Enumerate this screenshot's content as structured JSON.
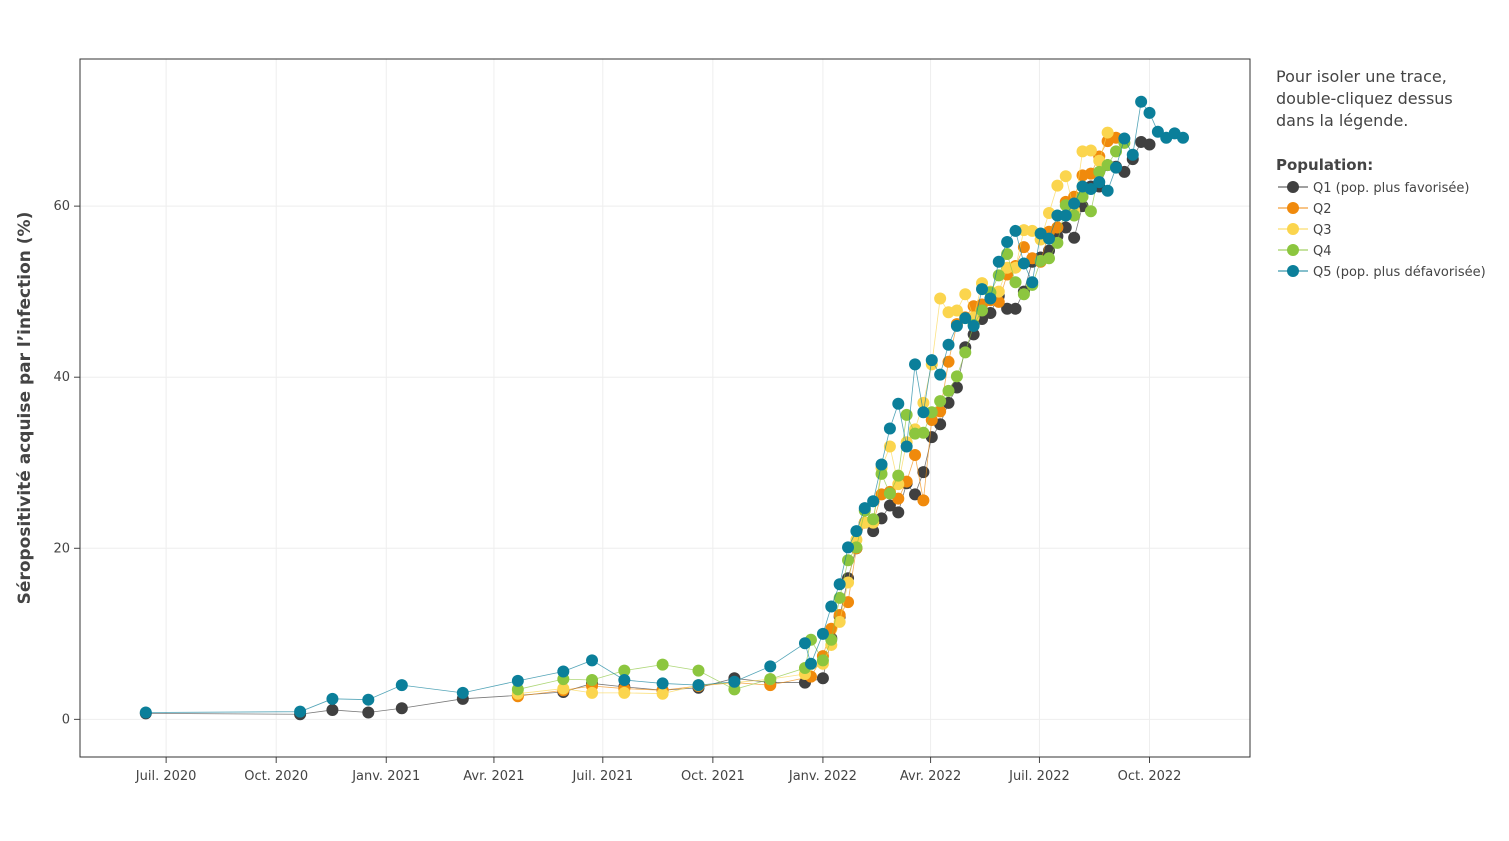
{
  "chart_data": {
    "type": "line",
    "ylabel": "Séropositivité acquise par l’infection (%)",
    "note": [
      "Pour isoler une trace,",
      "double-cliquez dessus",
      "dans la légende."
    ],
    "legend_title": "Population:",
    "legend": "right",
    "grid": true,
    "xlim": [
      "2020-04-20",
      "2022-12-24"
    ],
    "ylim": [
      -4.4,
      77.2
    ],
    "yticks": [
      0,
      20,
      40,
      60
    ],
    "xticks": [
      {
        "value": "2020-07-01",
        "label": "Juil. 2020"
      },
      {
        "value": "2020-10-01",
        "label": "Oct. 2020"
      },
      {
        "value": "2021-01-01",
        "label": "Janv. 2021"
      },
      {
        "value": "2021-04-01",
        "label": "Avr. 2021"
      },
      {
        "value": "2021-07-01",
        "label": "Juil. 2021"
      },
      {
        "value": "2021-10-01",
        "label": "Oct. 2021"
      },
      {
        "value": "2022-01-01",
        "label": "Janv. 2022"
      },
      {
        "value": "2022-04-01",
        "label": "Avr. 2022"
      },
      {
        "value": "2022-07-01",
        "label": "Juil. 2022"
      },
      {
        "value": "2022-10-01",
        "label": "Oct. 2022"
      }
    ],
    "series": [
      {
        "name": "Q1 (pop. plus favorisée)",
        "color": "#404040",
        "x": [
          "2020-06-14",
          "2020-10-21",
          "2020-11-17",
          "2020-12-17",
          "2021-01-14",
          "2021-03-06",
          "2021-04-21",
          "2021-05-29",
          "2021-06-22",
          "2021-07-19",
          "2021-08-20",
          "2021-09-19",
          "2021-10-19",
          "2021-11-18",
          "2021-12-17",
          "2022-01-01",
          "2022-01-08",
          "2022-01-15",
          "2022-01-22",
          "2022-01-29",
          "2022-02-05",
          "2022-02-12",
          "2022-02-19",
          "2022-02-26",
          "2022-03-05",
          "2022-03-12",
          "2022-03-19",
          "2022-03-26",
          "2022-04-02",
          "2022-04-09",
          "2022-04-16",
          "2022-04-23",
          "2022-04-30",
          "2022-05-07",
          "2022-05-14",
          "2022-05-21",
          "2022-05-28",
          "2022-06-04",
          "2022-06-11",
          "2022-06-18",
          "2022-06-25",
          "2022-07-02",
          "2022-07-09",
          "2022-07-16",
          "2022-07-23",
          "2022-07-30",
          "2022-08-06",
          "2022-08-13",
          "2022-08-20",
          "2022-08-27",
          "2022-09-03",
          "2022-09-10",
          "2022-09-17",
          "2022-09-24",
          "2022-10-01"
        ],
        "values": [
          0.7,
          0.6,
          1.1,
          0.8,
          1.3,
          2.4,
          2.8,
          3.2,
          4.2,
          3.8,
          3.4,
          3.7,
          4.8,
          4.3,
          4.3,
          4.8,
          9.5,
          12,
          16.5,
          20,
          23,
          22,
          23.5,
          25,
          24.2,
          27.6,
          26.3,
          28.9,
          33,
          34.5,
          37,
          38.8,
          43.5,
          45,
          46.8,
          47.5,
          49.5,
          48,
          48,
          50,
          53.5,
          54,
          54.8,
          56.5,
          57.5,
          56.3,
          60,
          62.3,
          62.3,
          64.8,
          64.6,
          64,
          65.5,
          67.5,
          67.2
        ]
      },
      {
        "name": "Q2",
        "color": "#f08a0c",
        "x": [
          "2021-04-21",
          "2021-05-29",
          "2021-06-22",
          "2021-07-19",
          "2021-08-20",
          "2021-09-19",
          "2021-10-19",
          "2021-11-18",
          "2021-12-22",
          "2022-01-01",
          "2022-01-08",
          "2022-01-15",
          "2022-01-22",
          "2022-01-29",
          "2022-02-05",
          "2022-02-12",
          "2022-02-19",
          "2022-02-26",
          "2022-03-05",
          "2022-03-12",
          "2022-03-19",
          "2022-03-26",
          "2022-04-02",
          "2022-04-09",
          "2022-04-16",
          "2022-04-23",
          "2022-04-30",
          "2022-05-07",
          "2022-05-14",
          "2022-05-21",
          "2022-05-28",
          "2022-06-04",
          "2022-06-11",
          "2022-06-18",
          "2022-06-25",
          "2022-07-02",
          "2022-07-09",
          "2022-07-16",
          "2022-07-23",
          "2022-07-30",
          "2022-08-06",
          "2022-08-13",
          "2022-08-20",
          "2022-08-27",
          "2022-09-03"
        ],
        "values": [
          2.7,
          3.4,
          3.9,
          3.6,
          3.4,
          3.9,
          4.3,
          4.0,
          5.0,
          7.4,
          10.6,
          12.2,
          13.7,
          20,
          23,
          23,
          26.3,
          26.6,
          25.8,
          27.8,
          30.9,
          25.6,
          35,
          36,
          41.8,
          46.2,
          47,
          48.3,
          48.5,
          49,
          48.8,
          52,
          53,
          55.2,
          53.9,
          53.5,
          57,
          57.5,
          60.5,
          61.1,
          63.6,
          63.8,
          65.8,
          67.6,
          68
        ]
      },
      {
        "name": "Q3",
        "color": "#fbd54e",
        "x": [
          "2021-04-21",
          "2021-05-29",
          "2021-06-22",
          "2021-07-19",
          "2021-08-20",
          "2021-09-19",
          "2021-10-19",
          "2021-11-18",
          "2021-12-17",
          "2022-01-01",
          "2022-01-08",
          "2022-01-15",
          "2022-01-22",
          "2022-01-29",
          "2022-02-05",
          "2022-02-12",
          "2022-02-19",
          "2022-02-26",
          "2022-03-05",
          "2022-03-12",
          "2022-03-19",
          "2022-03-26",
          "2022-04-02",
          "2022-04-09",
          "2022-04-16",
          "2022-04-23",
          "2022-04-30",
          "2022-05-07",
          "2022-05-14",
          "2022-05-21",
          "2022-05-28",
          "2022-06-04",
          "2022-06-11",
          "2022-06-18",
          "2022-06-25",
          "2022-07-02",
          "2022-07-09",
          "2022-07-16",
          "2022-07-23",
          "2022-07-30",
          "2022-08-06",
          "2022-08-13",
          "2022-08-20",
          "2022-08-27"
        ],
        "values": [
          3.0,
          3.6,
          3.1,
          3.1,
          3.0,
          4.0,
          4.3,
          4.7,
          5.3,
          6.5,
          8.7,
          11.4,
          16,
          21,
          23,
          23,
          29.4,
          31.9,
          27.5,
          32.4,
          33.9,
          37,
          41.5,
          49.2,
          47.6,
          47.8,
          49.7,
          47,
          51,
          50,
          50,
          52.8,
          52.8,
          57.2,
          57.1,
          56.1,
          59.2,
          62.4,
          63.5,
          59.5,
          66.4,
          66.5,
          65.3,
          68.6
        ]
      },
      {
        "name": "Q4",
        "color": "#8cc63f",
        "x": [
          "2021-04-21",
          "2021-05-29",
          "2021-06-22",
          "2021-07-19",
          "2021-08-20",
          "2021-09-19",
          "2021-10-19",
          "2021-11-18",
          "2021-12-17",
          "2021-12-22",
          "2022-01-01",
          "2022-01-08",
          "2022-01-15",
          "2022-01-22",
          "2022-01-29",
          "2022-02-05",
          "2022-02-12",
          "2022-02-19",
          "2022-02-26",
          "2022-03-05",
          "2022-03-12",
          "2022-03-19",
          "2022-03-26",
          "2022-04-02",
          "2022-04-09",
          "2022-04-16",
          "2022-04-23",
          "2022-04-30",
          "2022-05-07",
          "2022-05-14",
          "2022-05-21",
          "2022-05-28",
          "2022-06-04",
          "2022-06-11",
          "2022-06-18",
          "2022-06-25",
          "2022-07-02",
          "2022-07-09",
          "2022-07-16",
          "2022-07-23",
          "2022-07-30",
          "2022-08-06",
          "2022-08-13",
          "2022-08-20",
          "2022-08-27",
          "2022-09-03",
          "2022-09-10"
        ],
        "values": [
          3.5,
          4.7,
          4.6,
          5.7,
          6.4,
          5.7,
          3.5,
          4.7,
          6.0,
          9.3,
          6.9,
          9.3,
          14.2,
          18.6,
          20.1,
          24.4,
          23.4,
          28.7,
          26.4,
          28.5,
          35.6,
          33.4,
          33.5,
          35.9,
          37.2,
          38.4,
          40.1,
          42.9,
          46.1,
          47.8,
          49.9,
          51.9,
          54.4,
          51.1,
          49.7,
          50.8,
          53.6,
          53.9,
          55.7,
          60.1,
          58.9,
          61.1,
          59.4,
          64,
          64.8,
          66.4,
          67.4
        ]
      },
      {
        "name": "Q5 (pop. plus défavorisée)",
        "color": "#0b7f9a",
        "x": [
          "2020-06-14",
          "2020-10-21",
          "2020-11-17",
          "2020-12-17",
          "2021-01-14",
          "2021-03-06",
          "2021-04-21",
          "2021-05-29",
          "2021-06-22",
          "2021-07-19",
          "2021-08-20",
          "2021-09-19",
          "2021-10-19",
          "2021-11-18",
          "2021-12-17",
          "2021-12-22",
          "2022-01-01",
          "2022-01-08",
          "2022-01-15",
          "2022-01-22",
          "2022-01-29",
          "2022-02-05",
          "2022-02-12",
          "2022-02-19",
          "2022-02-26",
          "2022-03-05",
          "2022-03-12",
          "2022-03-19",
          "2022-03-26",
          "2022-04-02",
          "2022-04-09",
          "2022-04-16",
          "2022-04-23",
          "2022-04-30",
          "2022-05-07",
          "2022-05-14",
          "2022-05-21",
          "2022-05-28",
          "2022-06-04",
          "2022-06-11",
          "2022-06-18",
          "2022-06-25",
          "2022-07-02",
          "2022-07-09",
          "2022-07-16",
          "2022-07-23",
          "2022-07-30",
          "2022-08-06",
          "2022-08-13",
          "2022-08-20",
          "2022-08-27",
          "2022-09-03",
          "2022-09-10",
          "2022-09-17",
          "2022-09-24",
          "2022-10-01",
          "2022-10-08",
          "2022-10-15",
          "2022-10-22",
          "2022-10-29"
        ],
        "values": [
          0.8,
          0.9,
          2.4,
          2.3,
          4.0,
          3.1,
          4.5,
          5.6,
          6.9,
          4.6,
          4.2,
          4.0,
          4.4,
          6.2,
          8.9,
          6.5,
          10,
          13.2,
          15.8,
          20.1,
          22,
          24.7,
          25.5,
          29.8,
          34,
          36.9,
          31.9,
          41.5,
          35.9,
          42,
          40.3,
          43.8,
          46,
          46.9,
          46,
          50.3,
          49.2,
          53.5,
          55.8,
          57.1,
          53.3,
          51.1,
          56.8,
          56.2,
          58.9,
          58.9,
          60.3,
          62.3,
          62,
          62.8,
          61.8,
          64.5,
          67.9,
          66,
          72.2,
          70.9,
          68.7,
          68,
          68.5,
          68
        ]
      }
    ]
  }
}
